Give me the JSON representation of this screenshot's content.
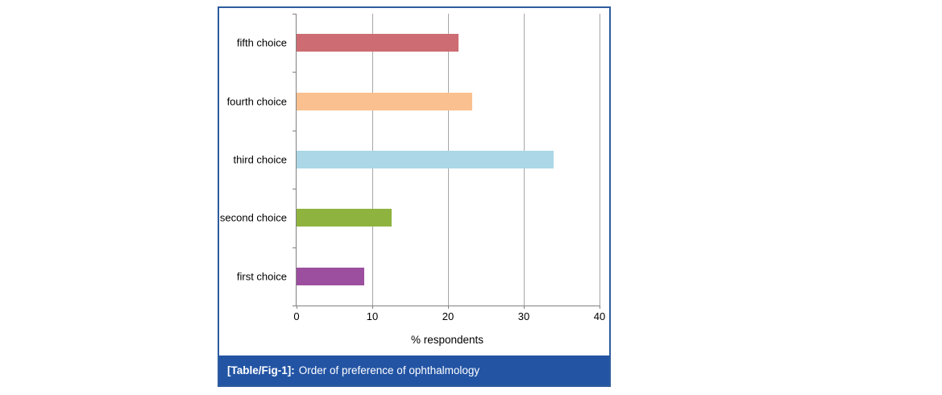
{
  "figure": {
    "caption_prefix": "[Table/Fig-1]:",
    "caption_text": "Order of preference of ophthalmology"
  },
  "chart_data": {
    "type": "bar",
    "orientation": "horizontal",
    "title": "",
    "categories": [
      "fifth choice",
      "fourth choice",
      "third choice",
      "second choice",
      "first choice"
    ],
    "values": [
      21.4,
      23.2,
      33.9,
      12.5,
      8.9
    ],
    "colors": [
      "#CD6C72",
      "#FAC08F",
      "#ABD7E6",
      "#8FB33F",
      "#9C4F9F"
    ],
    "xlabel": "% respondents",
    "xlim": [
      0,
      40
    ],
    "xticks": [
      0,
      10,
      20,
      30,
      40
    ],
    "grid": true,
    "legend": "none",
    "gridline_color": "#A6A6A6",
    "panel_border_color": "#2E5C9E",
    "caption_bg_color": "#2354A4"
  }
}
